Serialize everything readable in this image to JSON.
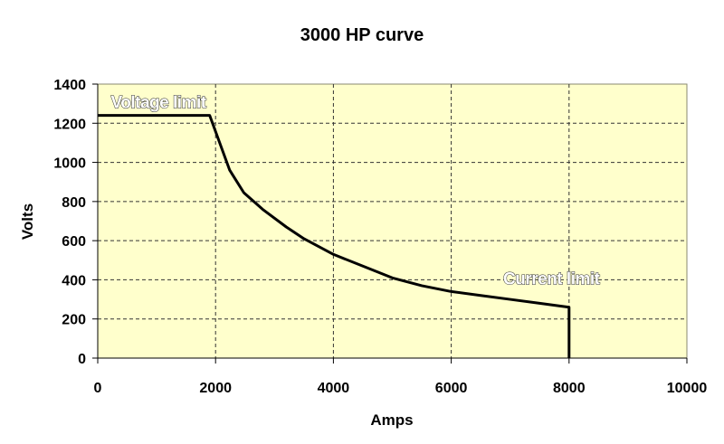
{
  "chart_data": {
    "type": "line",
    "title": "3000 HP curve",
    "xlabel": "Amps",
    "ylabel": "Volts",
    "xlim": [
      0,
      10000
    ],
    "ylim": [
      0,
      1400
    ],
    "xticks": [
      0,
      2000,
      4000,
      6000,
      8000,
      10000
    ],
    "yticks": [
      0,
      200,
      400,
      600,
      800,
      1000,
      1200,
      1400
    ],
    "grid": true,
    "legend": null,
    "background_color": "#FFFFCC",
    "line_color": "#000000",
    "series": [
      {
        "name": "3000 HP curve",
        "x": [
          0,
          1900,
          2240,
          2480,
          2800,
          3200,
          3500,
          4000,
          4500,
          5000,
          5500,
          6000,
          6500,
          7000,
          7500,
          8000,
          8000
        ],
        "y": [
          1240,
          1240,
          960,
          845,
          760,
          670,
          610,
          530,
          470,
          410,
          370,
          340,
          320,
          300,
          280,
          260,
          0
        ]
      }
    ],
    "annotations": [
      {
        "text": "Voltage limit",
        "x": 300,
        "y": 1320
      },
      {
        "text": "Current limit",
        "x": 7700,
        "y": 350
      }
    ]
  }
}
